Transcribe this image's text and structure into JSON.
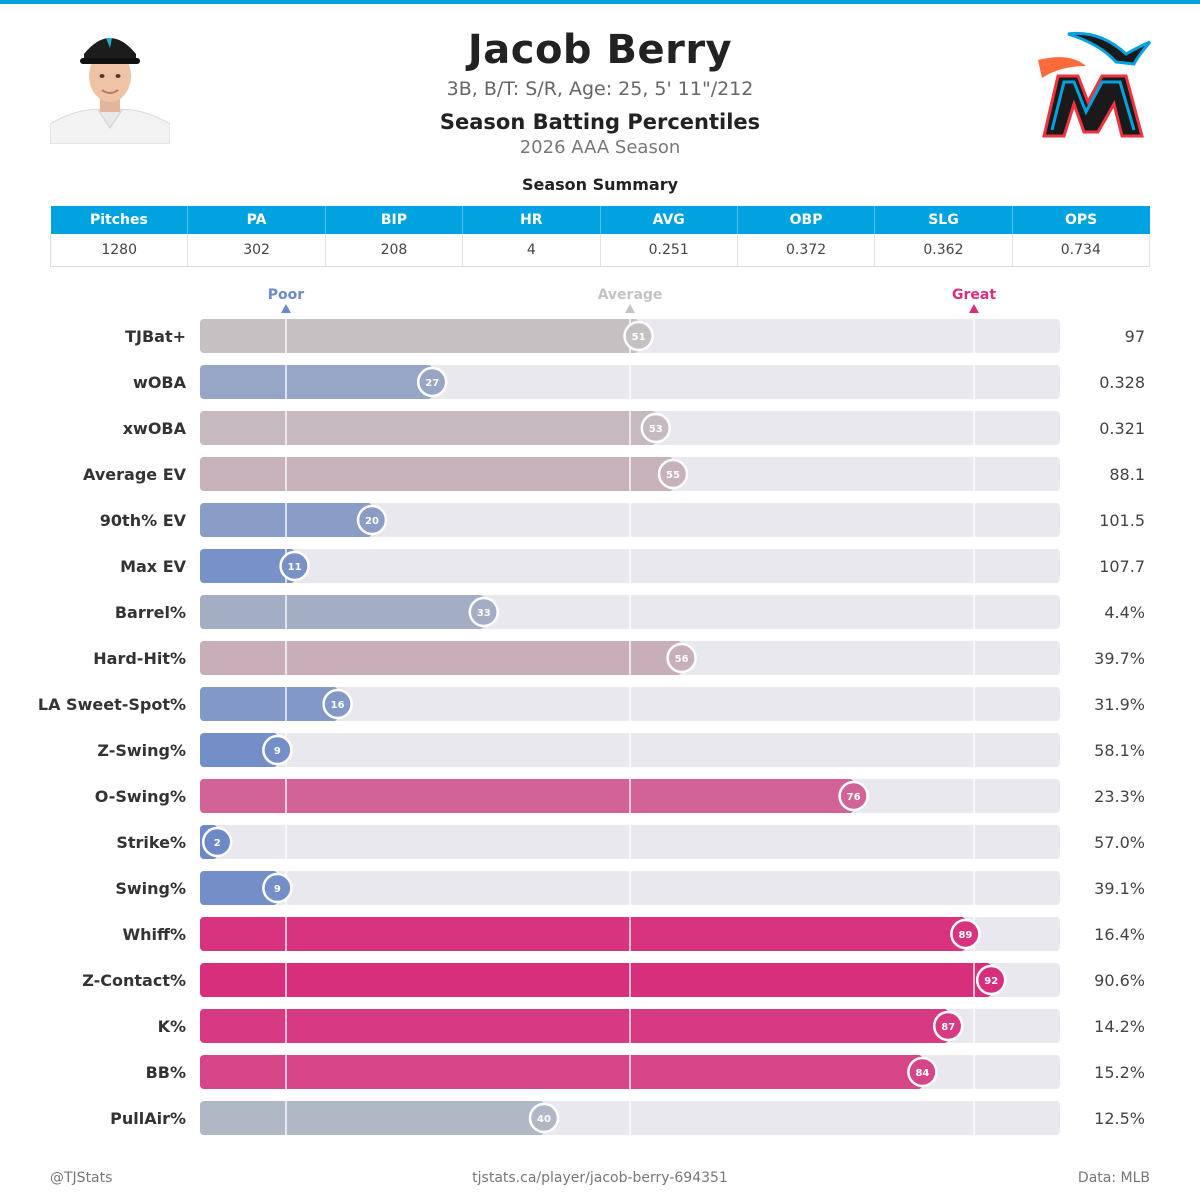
{
  "player": {
    "name": "Jacob Berry",
    "bio": "3B, B/T: S/R, Age: 25, 5' 11\"/212"
  },
  "report": {
    "title": "Season Batting Percentiles",
    "subtitle": "2026 AAA Season"
  },
  "summary": {
    "title": "Season Summary",
    "headers": [
      "Pitches",
      "PA",
      "BIP",
      "HR",
      "AVG",
      "OBP",
      "SLG",
      "OPS"
    ],
    "values": [
      "1280",
      "302",
      "208",
      "4",
      "0.251",
      "0.372",
      "0.362",
      "0.734"
    ]
  },
  "chart_data": {
    "type": "bar",
    "orientation": "horizontal",
    "xlim": [
      0,
      100
    ],
    "grid": true,
    "markers": [
      {
        "label": "Poor",
        "position": 10,
        "color": "#6c8ac7"
      },
      {
        "label": "Average",
        "position": 50,
        "color": "#c4c4c4"
      },
      {
        "label": "Great",
        "position": 90,
        "color": "#d82f7d"
      }
    ],
    "metrics": [
      {
        "name": "TJBat+",
        "percentile": 51,
        "value": "97"
      },
      {
        "name": "wOBA",
        "percentile": 27,
        "value": "0.328"
      },
      {
        "name": "xwOBA",
        "percentile": 53,
        "value": "0.321"
      },
      {
        "name": "Average EV",
        "percentile": 55,
        "value": "88.1"
      },
      {
        "name": "90th% EV",
        "percentile": 20,
        "value": "101.5"
      },
      {
        "name": "Max EV",
        "percentile": 11,
        "value": "107.7"
      },
      {
        "name": "Barrel%",
        "percentile": 33,
        "value": "4.4%"
      },
      {
        "name": "Hard-Hit%",
        "percentile": 56,
        "value": "39.7%"
      },
      {
        "name": "LA Sweet-Spot%",
        "percentile": 16,
        "value": "31.9%"
      },
      {
        "name": "Z-Swing%",
        "percentile": 9,
        "value": "58.1%"
      },
      {
        "name": "O-Swing%",
        "percentile": 76,
        "value": "23.3%"
      },
      {
        "name": "Strike%",
        "percentile": 2,
        "value": "57.0%"
      },
      {
        "name": "Swing%",
        "percentile": 9,
        "value": "39.1%"
      },
      {
        "name": "Whiff%",
        "percentile": 89,
        "value": "16.4%"
      },
      {
        "name": "Z-Contact%",
        "percentile": 92,
        "value": "90.6%"
      },
      {
        "name": "K%",
        "percentile": 87,
        "value": "14.2%"
      },
      {
        "name": "BB%",
        "percentile": 84,
        "value": "15.2%"
      },
      {
        "name": "PullAir%",
        "percentile": 40,
        "value": "12.5%"
      }
    ]
  },
  "footer": {
    "left": "@TJStats",
    "center": "tjstats.ca/player/jacob-berry-694351",
    "right": "Data: MLB"
  },
  "colors": {
    "accent": "#00a3e0",
    "track": "#e8e8ee",
    "poor": "#6c8ac7",
    "average": "#c4c4c4",
    "great": "#d82f7d"
  }
}
